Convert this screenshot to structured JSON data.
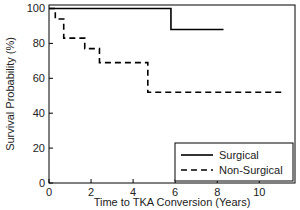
{
  "chart_data": {
    "type": "step",
    "x_label": "Time to TKA Conversion (Years)",
    "y_label": "Survival Probability (%)",
    "xlim": [
      0,
      11.7
    ],
    "xticks": [
      0,
      2,
      4,
      6,
      8,
      10
    ],
    "ylim": [
      0,
      102
    ],
    "yticks": [
      0,
      20,
      40,
      60,
      80,
      100
    ],
    "grid": false,
    "legend": "lower right",
    "series": [
      {
        "name": "Surgical",
        "color": "#000000",
        "line_style": "solid",
        "x": [
          0,
          5.8,
          8.3
        ],
        "values": [
          100,
          88,
          88
        ]
      },
      {
        "name": "Non-Surgical",
        "color": "#000000",
        "line_style": "dashed",
        "x": [
          0,
          0.3,
          0.7,
          1.7,
          2.4,
          4.7,
          11.2
        ],
        "values": [
          100,
          94,
          83,
          77,
          69,
          52,
          52
        ]
      }
    ]
  }
}
